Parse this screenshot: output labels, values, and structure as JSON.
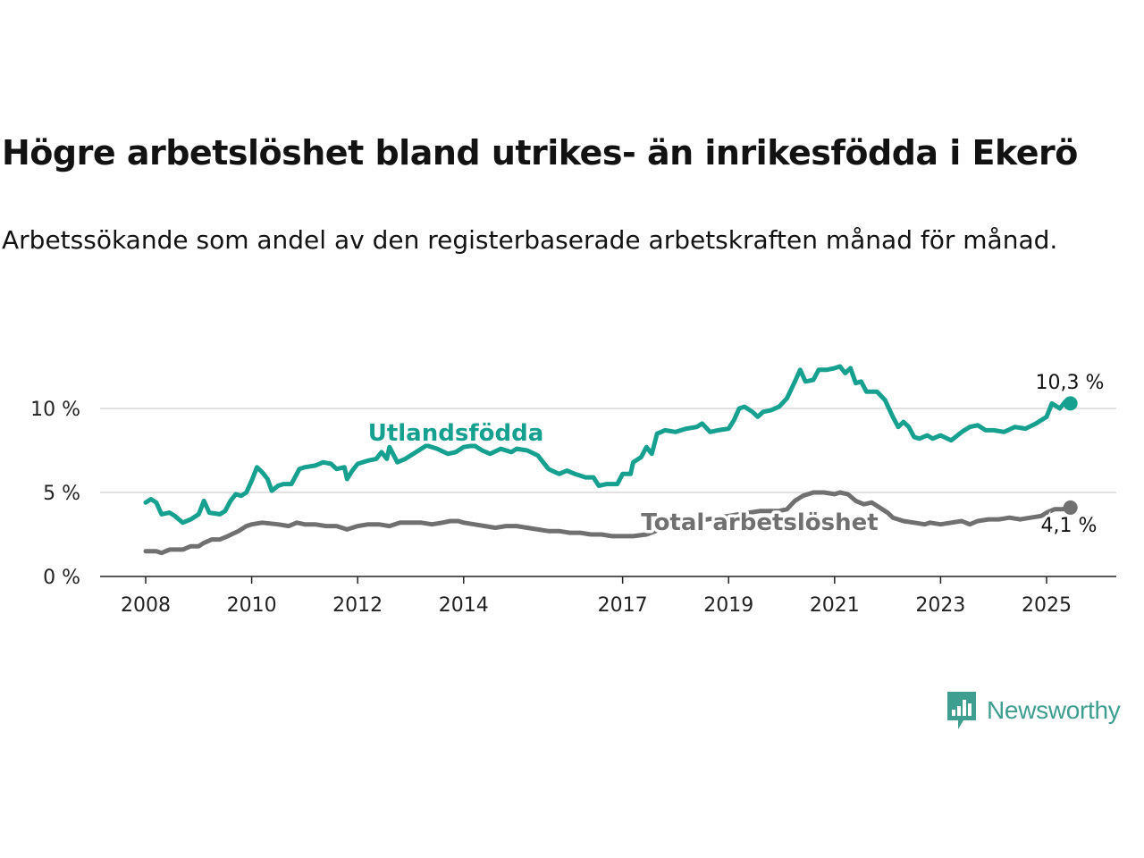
{
  "header": {
    "title": "Högre arbetslöshet bland utrikes- än inrikesfödda i Ekerö",
    "subtitle": "Arbetssökande som andel av den registerbaserade arbetskraften månad för månad."
  },
  "brand": {
    "name": "Newsworthy",
    "logo_icon": "newsworthy-logo-icon",
    "color": "#3e9e8f"
  },
  "chart_data": {
    "type": "line",
    "title": "Högre arbetslöshet bland utrikes- än inrikesfödda i Ekerö",
    "subtitle": "Arbetssökande som andel av den registerbaserade arbetskraften månad för månad.",
    "xlim": [
      2008,
      2025.6
    ],
    "ylim": [
      0,
      12.5
    ],
    "x_ticks": [
      {
        "value": 2008,
        "label": "2008"
      },
      {
        "value": 2010,
        "label": "2010"
      },
      {
        "value": 2012,
        "label": "2012"
      },
      {
        "value": 2014,
        "label": "2014"
      },
      {
        "value": 2017,
        "label": "2017"
      },
      {
        "value": 2019,
        "label": "2019"
      },
      {
        "value": 2021,
        "label": "2021"
      },
      {
        "value": 2023,
        "label": "2023"
      },
      {
        "value": 2025,
        "label": "2025"
      }
    ],
    "y_ticks": [
      {
        "value": 0,
        "label": "0 %"
      },
      {
        "value": 5,
        "label": "5 %"
      },
      {
        "value": 10,
        "label": "10 %"
      }
    ],
    "grid": true,
    "series": [
      {
        "name": "Utlandsfödda",
        "color": "#15a08f",
        "end_label": "10,3 %",
        "points": [
          [
            2008.0,
            4.4
          ],
          [
            2008.1,
            4.6
          ],
          [
            2008.2,
            4.4
          ],
          [
            2008.3,
            3.7
          ],
          [
            2008.45,
            3.8
          ],
          [
            2008.55,
            3.6
          ],
          [
            2008.7,
            3.2
          ],
          [
            2008.85,
            3.4
          ],
          [
            2009.0,
            3.7
          ],
          [
            2009.1,
            4.5
          ],
          [
            2009.2,
            3.8
          ],
          [
            2009.4,
            3.7
          ],
          [
            2009.5,
            3.9
          ],
          [
            2009.6,
            4.5
          ],
          [
            2009.7,
            4.9
          ],
          [
            2009.8,
            4.8
          ],
          [
            2009.9,
            5.0
          ],
          [
            2010.0,
            5.7
          ],
          [
            2010.1,
            6.5
          ],
          [
            2010.2,
            6.2
          ],
          [
            2010.3,
            5.8
          ],
          [
            2010.38,
            5.1
          ],
          [
            2010.5,
            5.4
          ],
          [
            2010.6,
            5.5
          ],
          [
            2010.75,
            5.5
          ],
          [
            2010.9,
            6.4
          ],
          [
            2011.0,
            6.5
          ],
          [
            2011.2,
            6.6
          ],
          [
            2011.35,
            6.8
          ],
          [
            2011.5,
            6.7
          ],
          [
            2011.6,
            6.4
          ],
          [
            2011.75,
            6.5
          ],
          [
            2011.8,
            5.8
          ],
          [
            2011.9,
            6.3
          ],
          [
            2012.0,
            6.7
          ],
          [
            2012.2,
            6.9
          ],
          [
            2012.35,
            7.0
          ],
          [
            2012.45,
            7.4
          ],
          [
            2012.55,
            7.0
          ],
          [
            2012.6,
            7.7
          ],
          [
            2012.75,
            6.8
          ],
          [
            2012.9,
            7.0
          ],
          [
            2013.0,
            7.2
          ],
          [
            2013.1,
            7.4
          ],
          [
            2013.3,
            7.8
          ],
          [
            2013.5,
            7.6
          ],
          [
            2013.7,
            7.3
          ],
          [
            2013.85,
            7.4
          ],
          [
            2014.0,
            7.7
          ],
          [
            2014.2,
            7.8
          ],
          [
            2014.35,
            7.5
          ],
          [
            2014.5,
            7.3
          ],
          [
            2014.7,
            7.6
          ],
          [
            2014.9,
            7.4
          ],
          [
            2015.0,
            7.6
          ],
          [
            2015.2,
            7.5
          ],
          [
            2015.4,
            7.2
          ],
          [
            2015.5,
            6.8
          ],
          [
            2015.6,
            6.4
          ],
          [
            2015.8,
            6.1
          ],
          [
            2015.95,
            6.3
          ],
          [
            2016.1,
            6.1
          ],
          [
            2016.3,
            5.9
          ],
          [
            2016.45,
            5.9
          ],
          [
            2016.55,
            5.4
          ],
          [
            2016.7,
            5.5
          ],
          [
            2016.9,
            5.5
          ],
          [
            2017.0,
            6.1
          ],
          [
            2017.15,
            6.1
          ],
          [
            2017.2,
            6.8
          ],
          [
            2017.35,
            7.1
          ],
          [
            2017.45,
            7.7
          ],
          [
            2017.55,
            7.3
          ],
          [
            2017.65,
            8.5
          ],
          [
            2017.8,
            8.7
          ],
          [
            2018.0,
            8.6
          ],
          [
            2018.2,
            8.8
          ],
          [
            2018.4,
            8.9
          ],
          [
            2018.5,
            9.1
          ],
          [
            2018.65,
            8.6
          ],
          [
            2018.8,
            8.7
          ],
          [
            2019.0,
            8.8
          ],
          [
            2019.1,
            9.3
          ],
          [
            2019.2,
            10.0
          ],
          [
            2019.3,
            10.1
          ],
          [
            2019.45,
            9.8
          ],
          [
            2019.55,
            9.5
          ],
          [
            2019.65,
            9.8
          ],
          [
            2019.8,
            9.9
          ],
          [
            2019.95,
            10.1
          ],
          [
            2020.1,
            10.6
          ],
          [
            2020.25,
            11.6
          ],
          [
            2020.35,
            12.3
          ],
          [
            2020.45,
            11.6
          ],
          [
            2020.6,
            11.7
          ],
          [
            2020.7,
            12.3
          ],
          [
            2020.85,
            12.3
          ],
          [
            2021.0,
            12.4
          ],
          [
            2021.1,
            12.5
          ],
          [
            2021.2,
            12.1
          ],
          [
            2021.3,
            12.4
          ],
          [
            2021.4,
            11.5
          ],
          [
            2021.5,
            11.6
          ],
          [
            2021.6,
            11.0
          ],
          [
            2021.8,
            11.0
          ],
          [
            2021.95,
            10.5
          ],
          [
            2022.1,
            9.5
          ],
          [
            2022.2,
            8.9
          ],
          [
            2022.3,
            9.2
          ],
          [
            2022.4,
            8.9
          ],
          [
            2022.5,
            8.3
          ],
          [
            2022.6,
            8.2
          ],
          [
            2022.75,
            8.4
          ],
          [
            2022.85,
            8.2
          ],
          [
            2023.0,
            8.4
          ],
          [
            2023.2,
            8.1
          ],
          [
            2023.4,
            8.6
          ],
          [
            2023.55,
            8.9
          ],
          [
            2023.7,
            9.0
          ],
          [
            2023.85,
            8.7
          ],
          [
            2024.0,
            8.7
          ],
          [
            2024.2,
            8.6
          ],
          [
            2024.4,
            8.9
          ],
          [
            2024.6,
            8.8
          ],
          [
            2024.8,
            9.1
          ],
          [
            2025.0,
            9.5
          ],
          [
            2025.1,
            10.3
          ],
          [
            2025.25,
            10.0
          ],
          [
            2025.35,
            10.4
          ],
          [
            2025.45,
            10.3
          ]
        ]
      },
      {
        "name": "Total arbetslöshet",
        "color": "#707070",
        "end_label": "4,1 %",
        "points": [
          [
            2008.0,
            1.5
          ],
          [
            2008.2,
            1.5
          ],
          [
            2008.3,
            1.4
          ],
          [
            2008.45,
            1.6
          ],
          [
            2008.7,
            1.6
          ],
          [
            2008.85,
            1.8
          ],
          [
            2009.0,
            1.8
          ],
          [
            2009.1,
            2.0
          ],
          [
            2009.25,
            2.2
          ],
          [
            2009.4,
            2.2
          ],
          [
            2009.55,
            2.4
          ],
          [
            2009.75,
            2.7
          ],
          [
            2009.9,
            3.0
          ],
          [
            2010.0,
            3.1
          ],
          [
            2010.2,
            3.2
          ],
          [
            2010.5,
            3.1
          ],
          [
            2010.7,
            3.0
          ],
          [
            2010.85,
            3.2
          ],
          [
            2011.0,
            3.1
          ],
          [
            2011.2,
            3.1
          ],
          [
            2011.4,
            3.0
          ],
          [
            2011.6,
            3.0
          ],
          [
            2011.8,
            2.8
          ],
          [
            2012.0,
            3.0
          ],
          [
            2012.2,
            3.1
          ],
          [
            2012.4,
            3.1
          ],
          [
            2012.6,
            3.0
          ],
          [
            2012.8,
            3.2
          ],
          [
            2013.0,
            3.2
          ],
          [
            2013.2,
            3.2
          ],
          [
            2013.4,
            3.1
          ],
          [
            2013.6,
            3.2
          ],
          [
            2013.75,
            3.3
          ],
          [
            2013.9,
            3.3
          ],
          [
            2014.0,
            3.2
          ],
          [
            2014.2,
            3.1
          ],
          [
            2014.4,
            3.0
          ],
          [
            2014.6,
            2.9
          ],
          [
            2014.8,
            3.0
          ],
          [
            2015.0,
            3.0
          ],
          [
            2015.2,
            2.9
          ],
          [
            2015.4,
            2.8
          ],
          [
            2015.6,
            2.7
          ],
          [
            2015.8,
            2.7
          ],
          [
            2016.0,
            2.6
          ],
          [
            2016.2,
            2.6
          ],
          [
            2016.4,
            2.5
          ],
          [
            2016.6,
            2.5
          ],
          [
            2016.8,
            2.4
          ],
          [
            2017.0,
            2.4
          ],
          [
            2017.2,
            2.4
          ],
          [
            2017.45,
            2.5
          ],
          [
            2017.7,
            2.8
          ],
          [
            2018.0,
            3.0
          ],
          [
            2018.4,
            3.3
          ],
          [
            2018.8,
            3.5
          ],
          [
            2019.2,
            3.7
          ],
          [
            2019.6,
            3.9
          ],
          [
            2019.95,
            3.9
          ],
          [
            2020.1,
            4.0
          ],
          [
            2020.25,
            4.5
          ],
          [
            2020.4,
            4.8
          ],
          [
            2020.6,
            5.0
          ],
          [
            2020.8,
            5.0
          ],
          [
            2021.0,
            4.9
          ],
          [
            2021.1,
            5.0
          ],
          [
            2021.25,
            4.9
          ],
          [
            2021.4,
            4.5
          ],
          [
            2021.55,
            4.3
          ],
          [
            2021.7,
            4.4
          ],
          [
            2021.85,
            4.1
          ],
          [
            2022.0,
            3.8
          ],
          [
            2022.1,
            3.5
          ],
          [
            2022.3,
            3.3
          ],
          [
            2022.5,
            3.2
          ],
          [
            2022.7,
            3.1
          ],
          [
            2022.8,
            3.2
          ],
          [
            2023.0,
            3.1
          ],
          [
            2023.2,
            3.2
          ],
          [
            2023.4,
            3.3
          ],
          [
            2023.55,
            3.1
          ],
          [
            2023.7,
            3.3
          ],
          [
            2023.9,
            3.4
          ],
          [
            2024.1,
            3.4
          ],
          [
            2024.3,
            3.5
          ],
          [
            2024.5,
            3.4
          ],
          [
            2024.7,
            3.5
          ],
          [
            2024.9,
            3.6
          ],
          [
            2025.0,
            3.8
          ],
          [
            2025.15,
            4.0
          ],
          [
            2025.3,
            4.0
          ],
          [
            2025.45,
            4.1
          ]
        ]
      }
    ]
  }
}
